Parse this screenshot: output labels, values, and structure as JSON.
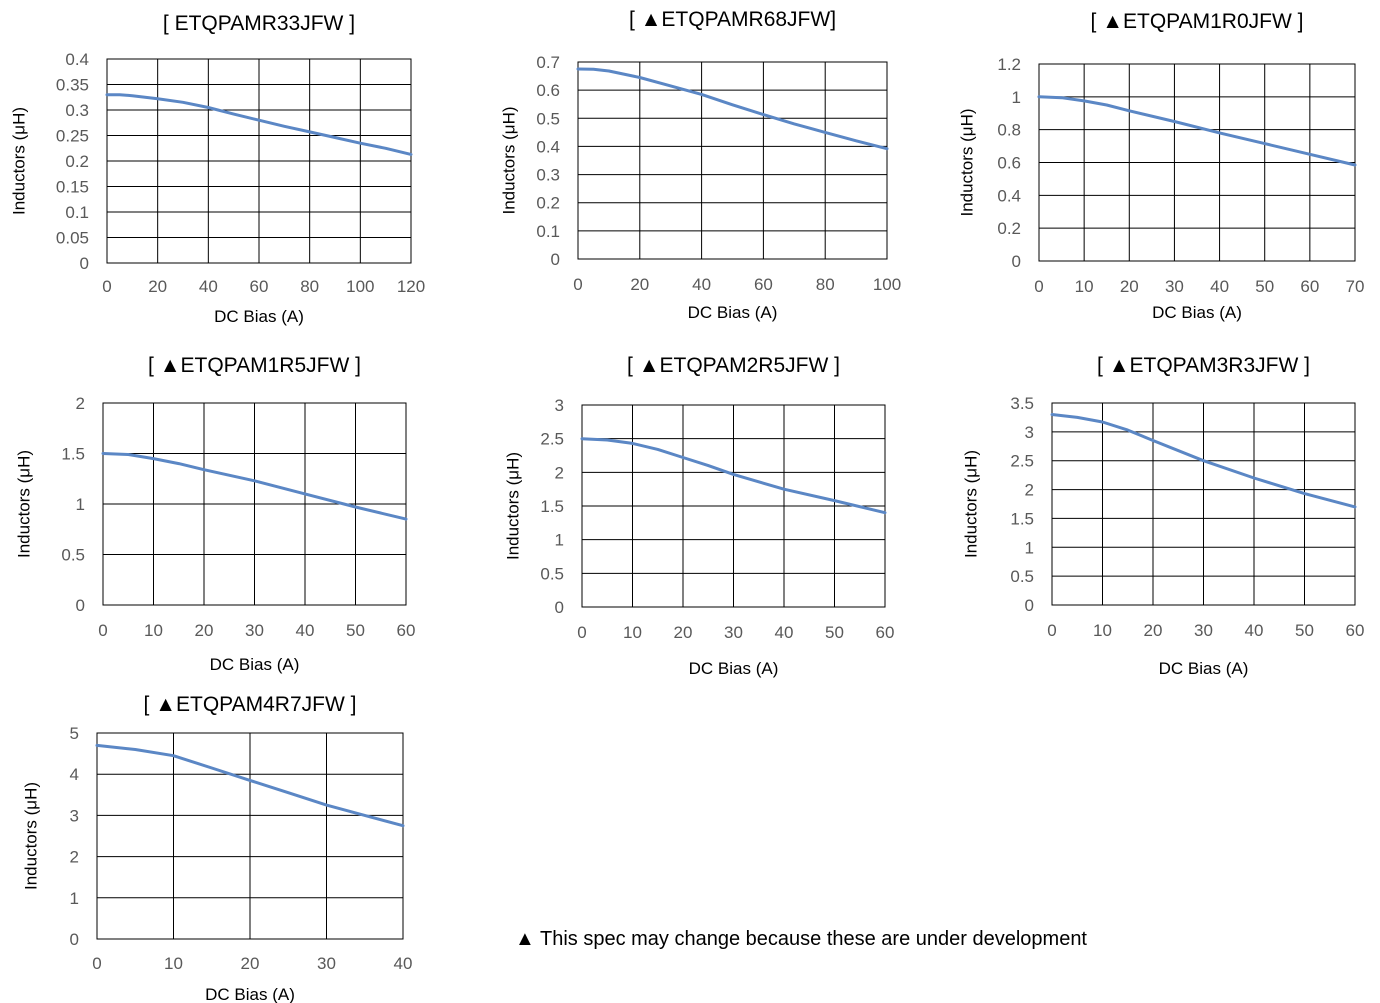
{
  "chart_data": [
    {
      "type": "line",
      "title": "[ ETQPAMR33JFW ]",
      "xlabel": "DC Bias  (A)",
      "ylabel": "Inductors (μH)",
      "xlim": [
        0,
        120
      ],
      "ylim": [
        0,
        0.4
      ],
      "xticks": [
        "0",
        "20",
        "40",
        "60",
        "80",
        "100",
        "120"
      ],
      "yticks": [
        "0",
        "0.05",
        "0.1",
        "0.15",
        "0.2",
        "0.25",
        "0.3",
        "0.35",
        "0.4"
      ],
      "grid": true,
      "series": [
        {
          "x": [
            0,
            5,
            10,
            20,
            30,
            40,
            50,
            60,
            70,
            80,
            90,
            100,
            110,
            120
          ],
          "y": [
            0.33,
            0.33,
            0.328,
            0.322,
            0.315,
            0.305,
            0.292,
            0.28,
            0.268,
            0.257,
            0.246,
            0.235,
            0.225,
            0.213
          ]
        }
      ]
    },
    {
      "type": "line",
      "title": "[ ▲ETQPAMR68JFW]",
      "xlabel": "DC Bias  (A)",
      "ylabel": "Inductors (μH)",
      "xlim": [
        0,
        100
      ],
      "ylim": [
        0,
        0.7
      ],
      "xticks": [
        "0",
        "20",
        "40",
        "60",
        "80",
        "100"
      ],
      "yticks": [
        "0",
        "0.1",
        "0.2",
        "0.3",
        "0.4",
        "0.5",
        "0.6",
        "0.7"
      ],
      "grid": true,
      "series": [
        {
          "x": [
            0,
            5,
            10,
            20,
            30,
            40,
            50,
            60,
            70,
            80,
            90,
            100
          ],
          "y": [
            0.675,
            0.674,
            0.668,
            0.645,
            0.615,
            0.585,
            0.548,
            0.513,
            0.48,
            0.45,
            0.42,
            0.392
          ]
        }
      ]
    },
    {
      "type": "line",
      "title": "[ ▲ETQPAM1R0JFW ]",
      "xlabel": "DC Bias  (A)",
      "ylabel": "Inductors (μH)",
      "xlim": [
        0,
        70
      ],
      "ylim": [
        0,
        1.2
      ],
      "xticks": [
        "0",
        "10",
        "20",
        "30",
        "40",
        "50",
        "60",
        "70"
      ],
      "yticks": [
        "0",
        "0.2",
        "0.4",
        "0.6",
        "0.8",
        "1",
        "1.2"
      ],
      "grid": true,
      "series": [
        {
          "x": [
            0,
            5,
            10,
            15,
            20,
            30,
            40,
            50,
            60,
            70
          ],
          "y": [
            1.0,
            0.995,
            0.975,
            0.95,
            0.915,
            0.85,
            0.78,
            0.715,
            0.65,
            0.585
          ]
        }
      ]
    },
    {
      "type": "line",
      "title": "[ ▲ETQPAM1R5JFW ]",
      "xlabel": "DC Bias  (A)",
      "ylabel": "Inductors (μH)",
      "xlim": [
        0,
        60
      ],
      "ylim": [
        0,
        2
      ],
      "xticks": [
        "0",
        "10",
        "20",
        "30",
        "40",
        "50",
        "60"
      ],
      "yticks": [
        "0",
        "0.5",
        "1",
        "1.5",
        "2"
      ],
      "grid": true,
      "series": [
        {
          "x": [
            0,
            5,
            10,
            15,
            20,
            30,
            40,
            50,
            60
          ],
          "y": [
            1.5,
            1.49,
            1.45,
            1.4,
            1.34,
            1.23,
            1.1,
            0.97,
            0.85
          ]
        }
      ]
    },
    {
      "type": "line",
      "title": "[ ▲ETQPAM2R5JFW ]",
      "xlabel": "DC Bias  (A)",
      "ylabel": "Inductors (μH)",
      "xlim": [
        0,
        60
      ],
      "ylim": [
        0,
        3
      ],
      "xticks": [
        "0",
        "10",
        "20",
        "30",
        "40",
        "50",
        "60"
      ],
      "yticks": [
        "0",
        "0.5",
        "1",
        "1.5",
        "2",
        "2.5",
        "3"
      ],
      "grid": true,
      "series": [
        {
          "x": [
            0,
            5,
            10,
            15,
            20,
            25,
            30,
            40,
            50,
            60
          ],
          "y": [
            2.5,
            2.48,
            2.43,
            2.34,
            2.22,
            2.1,
            1.97,
            1.75,
            1.58,
            1.4
          ]
        }
      ]
    },
    {
      "type": "line",
      "title": "[ ▲ETQPAM3R3JFW ]",
      "xlabel": "DC Bias  (A)",
      "ylabel": "Inductors (μH)",
      "xlim": [
        0,
        60
      ],
      "ylim": [
        0,
        3.5
      ],
      "xticks": [
        "0",
        "10",
        "20",
        "30",
        "40",
        "50",
        "60"
      ],
      "yticks": [
        "0",
        "0.5",
        "1",
        "1.5",
        "2",
        "2.5",
        "3",
        "3.5"
      ],
      "grid": true,
      "series": [
        {
          "x": [
            0,
            5,
            10,
            15,
            20,
            30,
            40,
            50,
            60
          ],
          "y": [
            3.3,
            3.25,
            3.17,
            3.03,
            2.85,
            2.5,
            2.2,
            1.93,
            1.7
          ]
        }
      ]
    },
    {
      "type": "line",
      "title": "[ ▲ETQPAM4R7JFW ]",
      "xlabel": "DC Bias  (A)",
      "ylabel": "Inductors (μH)",
      "xlim": [
        0,
        40
      ],
      "ylim": [
        0,
        5
      ],
      "xticks": [
        "0",
        "10",
        "20",
        "30",
        "40"
      ],
      "yticks": [
        "0",
        "1",
        "2",
        "3",
        "4",
        "5"
      ],
      "grid": true,
      "series": [
        {
          "x": [
            0,
            5,
            10,
            15,
            20,
            25,
            30,
            35,
            40
          ],
          "y": [
            4.7,
            4.6,
            4.45,
            4.15,
            3.85,
            3.55,
            3.25,
            3.0,
            2.75
          ]
        }
      ]
    }
  ],
  "footnote": "▲ This spec may change because these are under development",
  "colors": {
    "line": "#5B87C5",
    "grid": "#000000",
    "tick_label": "#595959"
  }
}
